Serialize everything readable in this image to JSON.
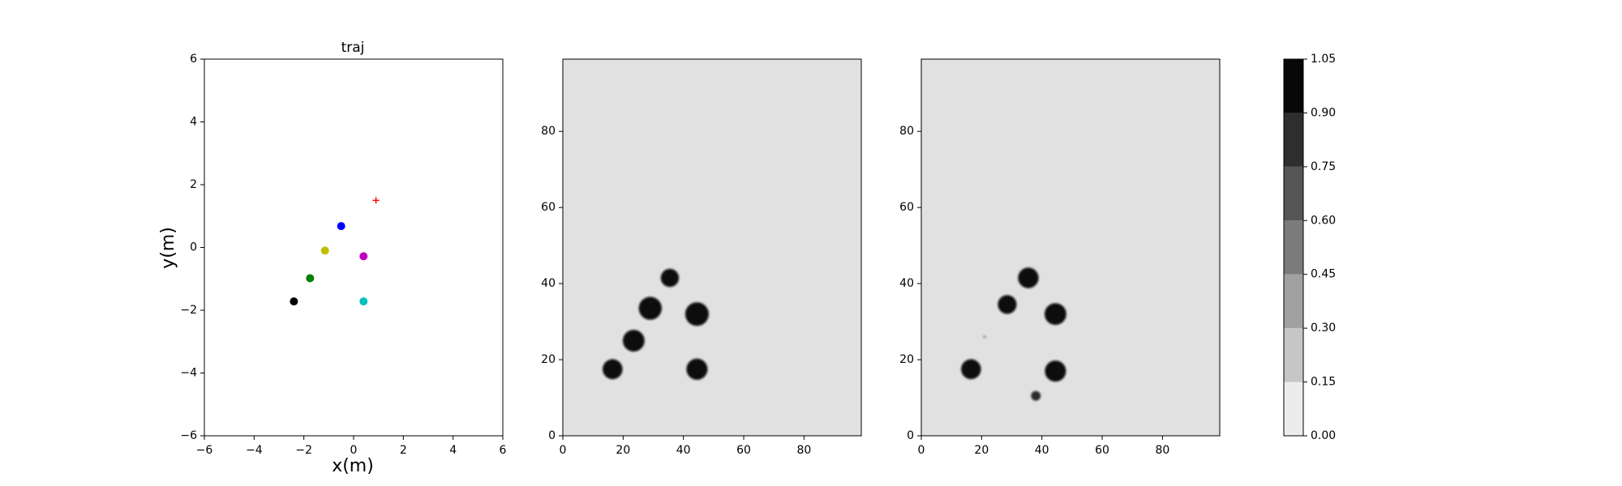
{
  "chart_data": [
    {
      "type": "scatter",
      "title": "traj",
      "xlabel": "x(m)",
      "ylabel": "y(m)",
      "xlim": [
        -6,
        6
      ],
      "ylim": [
        -6,
        6
      ],
      "xticks": [
        "−6",
        "−4",
        "−2",
        "0",
        "2",
        "4",
        "6"
      ],
      "yticks": [
        "−6",
        "−4",
        "−2",
        "0",
        "2",
        "4",
        "6"
      ],
      "grid": false,
      "points": [
        {
          "x": -0.5,
          "y": 0.68,
          "color": "#0000ff",
          "marker": "circle"
        },
        {
          "x": -1.15,
          "y": -0.1,
          "color": "#bfbf00",
          "marker": "circle"
        },
        {
          "x": 0.4,
          "y": -0.28,
          "color": "#bf00bf",
          "marker": "circle"
        },
        {
          "x": -1.75,
          "y": -0.98,
          "color": "#008000",
          "marker": "circle"
        },
        {
          "x": -2.4,
          "y": -1.72,
          "color": "#000000",
          "marker": "circle"
        },
        {
          "x": 0.4,
          "y": -1.72,
          "color": "#00bfbf",
          "marker": "circle"
        },
        {
          "x": 0.9,
          "y": 1.5,
          "color": "#ff0000",
          "marker": "plus"
        }
      ]
    },
    {
      "type": "heatmap",
      "xlim": [
        0,
        99
      ],
      "ylim": [
        0,
        99
      ],
      "xticks": [
        "0",
        "20",
        "40",
        "60",
        "80"
      ],
      "yticks": [
        "0",
        "20",
        "40",
        "60",
        "80"
      ],
      "background_value": 0.05,
      "blobs": [
        {
          "cx": 16.5,
          "cy": 17.5,
          "r": 3.3,
          "value": 1.0
        },
        {
          "cx": 23.5,
          "cy": 25.0,
          "r": 3.6,
          "value": 1.0
        },
        {
          "cx": 29.0,
          "cy": 33.5,
          "r": 3.8,
          "value": 1.0
        },
        {
          "cx": 35.5,
          "cy": 41.5,
          "r": 3.0,
          "value": 1.0
        },
        {
          "cx": 44.5,
          "cy": 32.0,
          "r": 3.9,
          "value": 1.0
        },
        {
          "cx": 44.5,
          "cy": 17.5,
          "r": 3.5,
          "value": 1.0
        }
      ]
    },
    {
      "type": "heatmap",
      "xlim": [
        0,
        99
      ],
      "ylim": [
        0,
        99
      ],
      "xticks": [
        "0",
        "20",
        "40",
        "60",
        "80"
      ],
      "yticks": [
        "0",
        "20",
        "40",
        "60",
        "80"
      ],
      "background_value": 0.05,
      "blobs": [
        {
          "cx": 16.5,
          "cy": 17.5,
          "r": 3.3,
          "value": 1.0
        },
        {
          "cx": 28.5,
          "cy": 34.5,
          "r": 3.1,
          "value": 1.0
        },
        {
          "cx": 35.5,
          "cy": 41.5,
          "r": 3.4,
          "value": 1.0
        },
        {
          "cx": 44.5,
          "cy": 32.0,
          "r": 3.6,
          "value": 1.0
        },
        {
          "cx": 44.5,
          "cy": 17.0,
          "r": 3.5,
          "value": 1.0
        },
        {
          "cx": 38.0,
          "cy": 10.5,
          "r": 1.6,
          "value": 0.85
        },
        {
          "cx": 21.0,
          "cy": 26.0,
          "r": 0.5,
          "value": 0.35
        }
      ]
    },
    {
      "type": "colorbar",
      "levels": [
        0.0,
        0.15,
        0.3,
        0.45,
        0.6,
        0.75,
        0.9,
        1.05
      ],
      "tick_labels": [
        "0.00",
        "0.15",
        "0.30",
        "0.45",
        "0.60",
        "0.75",
        "0.90",
        "1.05"
      ],
      "colors": [
        "#ececec",
        "#c6c6c6",
        "#a0a0a0",
        "#7b7b7b",
        "#555555",
        "#2e2e2e",
        "#080808"
      ]
    }
  ]
}
